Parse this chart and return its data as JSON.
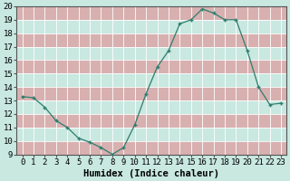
{
  "x": [
    0,
    1,
    2,
    3,
    4,
    5,
    6,
    7,
    8,
    9,
    10,
    11,
    12,
    13,
    14,
    15,
    16,
    17,
    18,
    19,
    20,
    21,
    22,
    23
  ],
  "y": [
    13.3,
    13.2,
    12.5,
    11.5,
    11.0,
    10.2,
    9.9,
    9.5,
    9.0,
    9.5,
    11.2,
    13.5,
    15.5,
    16.7,
    18.7,
    19.0,
    19.8,
    19.5,
    19.0,
    19.0,
    16.7,
    14.0,
    12.7,
    12.8
  ],
  "line_color": "#2e7d6e",
  "marker_color": "#2e7d6e",
  "bg_color": "#c8e8e0",
  "grid_bg_color": "#c8e8e0",
  "grid_line_color": "#ffffff",
  "grid_band_color": "#d8b0b0",
  "xlabel": "Humidex (Indice chaleur)",
  "xlabel_fontsize": 7.5,
  "tick_fontsize": 6.5,
  "ylim": [
    9,
    20
  ],
  "xlim": [
    -0.5,
    23.5
  ],
  "yticks": [
    9,
    10,
    11,
    12,
    13,
    14,
    15,
    16,
    17,
    18,
    19,
    20
  ],
  "xticks": [
    0,
    1,
    2,
    3,
    4,
    5,
    6,
    7,
    8,
    9,
    10,
    11,
    12,
    13,
    14,
    15,
    16,
    17,
    18,
    19,
    20,
    21,
    22,
    23
  ],
  "xtick_labels": [
    "0",
    "1",
    "2",
    "3",
    "4",
    "5",
    "6",
    "7",
    "8",
    "9",
    "10",
    "11",
    "12",
    "13",
    "14",
    "15",
    "16",
    "17",
    "18",
    "19",
    "20",
    "21",
    "22",
    "23"
  ]
}
